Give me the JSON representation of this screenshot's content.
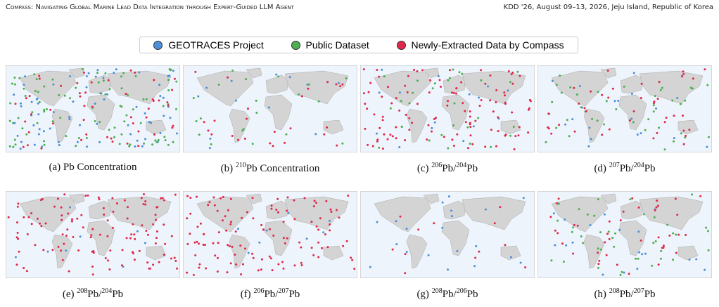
{
  "header": {
    "left": "Compass: Navigating Global Marine Lead Data Integration through Expert-Guided LLM Agent",
    "right": "KDD '26, August 09–13, 2026, Jeju Island, Republic of Korea"
  },
  "legend": {
    "items": [
      {
        "label": "GEOTRACES Project",
        "color": "#4a90d9"
      },
      {
        "label": "Public Dataset",
        "color": "#4caf50"
      },
      {
        "label": "Newly-Extracted Data by Compass",
        "color": "#e0284a"
      }
    ]
  },
  "panels": [
    {
      "caption": [
        {
          "text": "(a) Pb Concentration"
        }
      ]
    },
    {
      "caption": [
        {
          "text": "(b) "
        },
        {
          "sup": "210"
        },
        {
          "text": "Pb Concentration"
        }
      ]
    },
    {
      "caption": [
        {
          "text": "(c) "
        },
        {
          "sup": "206"
        },
        {
          "text": "Pb/"
        },
        {
          "sup": "204"
        },
        {
          "text": "Pb"
        }
      ]
    },
    {
      "caption": [
        {
          "text": "(d) "
        },
        {
          "sup": "207"
        },
        {
          "text": "Pb/"
        },
        {
          "sup": "204"
        },
        {
          "text": "Pb"
        }
      ]
    },
    {
      "caption": [
        {
          "text": "(e) "
        },
        {
          "sup": "208"
        },
        {
          "text": "Pb/"
        },
        {
          "sup": "204"
        },
        {
          "text": "Pb"
        }
      ]
    },
    {
      "caption": [
        {
          "text": "(f) "
        },
        {
          "sup": "206"
        },
        {
          "text": "Pb/"
        },
        {
          "sup": "207"
        },
        {
          "text": "Pb"
        }
      ]
    },
    {
      "caption": [
        {
          "text": "(g) "
        },
        {
          "sup": "208"
        },
        {
          "text": "Pb/"
        },
        {
          "sup": "206"
        },
        {
          "text": "Pb"
        }
      ]
    },
    {
      "caption": [
        {
          "text": "(h) "
        },
        {
          "sup": "208"
        },
        {
          "text": "Pb/"
        },
        {
          "sup": "207"
        },
        {
          "text": "Pb"
        }
      ]
    }
  ]
}
